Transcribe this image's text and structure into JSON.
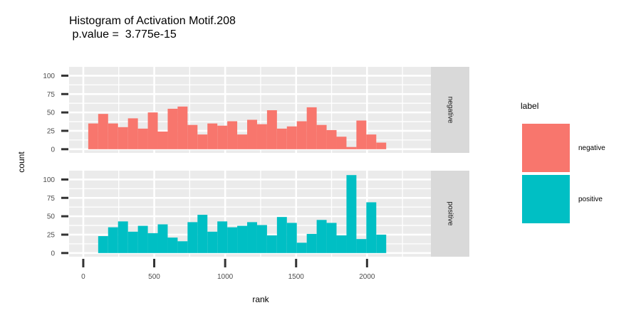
{
  "chart_data": {
    "type": "bar",
    "title": "Histogram of Activation Motif.208",
    "subtitle": " p.value =  3.775e-15",
    "xlabel": "rank",
    "ylabel": "count",
    "xlim": [
      -100,
      2450
    ],
    "ylim": [
      -5,
      112
    ],
    "x_ticks": [
      0,
      500,
      1000,
      1500,
      2000
    ],
    "x_tick_labels": [
      "0",
      "500",
      "1000",
      "1500",
      "2000"
    ],
    "y_ticks": [
      0,
      25,
      50,
      75,
      100
    ],
    "y_tick_labels": [
      "0",
      "25",
      "50",
      "75",
      "100"
    ],
    "bin_width": 70,
    "bin_starts": [
      -35,
      35,
      105,
      175,
      245,
      315,
      385,
      455,
      525,
      595,
      665,
      735,
      805,
      875,
      945,
      1015,
      1085,
      1155,
      1225,
      1295,
      1365,
      1435,
      1505,
      1575,
      1645,
      1715,
      1785,
      1855,
      1925,
      1995,
      2065
    ],
    "grid": true,
    "legend": {
      "title": "label",
      "position": "right",
      "entries": [
        {
          "label": "negative",
          "color": "#F8766D"
        },
        {
          "label": "positive",
          "color": "#00BFC4"
        }
      ]
    },
    "series": [
      {
        "name": "negative",
        "color": "#F8766D",
        "values": [
          0,
          35,
          48,
          35,
          30,
          42,
          28,
          50,
          24,
          55,
          58,
          33,
          20,
          35,
          32,
          38,
          20,
          40,
          34,
          53,
          28,
          31,
          38,
          57,
          33,
          26,
          17,
          3,
          39,
          20,
          9
        ]
      },
      {
        "name": "positive",
        "color": "#00BFC4",
        "values": [
          0,
          0,
          23,
          35,
          43,
          29,
          37,
          27,
          39,
          21,
          16,
          42,
          52,
          29,
          43,
          35,
          37,
          42,
          38,
          24,
          49,
          41,
          14,
          26,
          45,
          41,
          24,
          106,
          19,
          69,
          25
        ]
      }
    ]
  }
}
